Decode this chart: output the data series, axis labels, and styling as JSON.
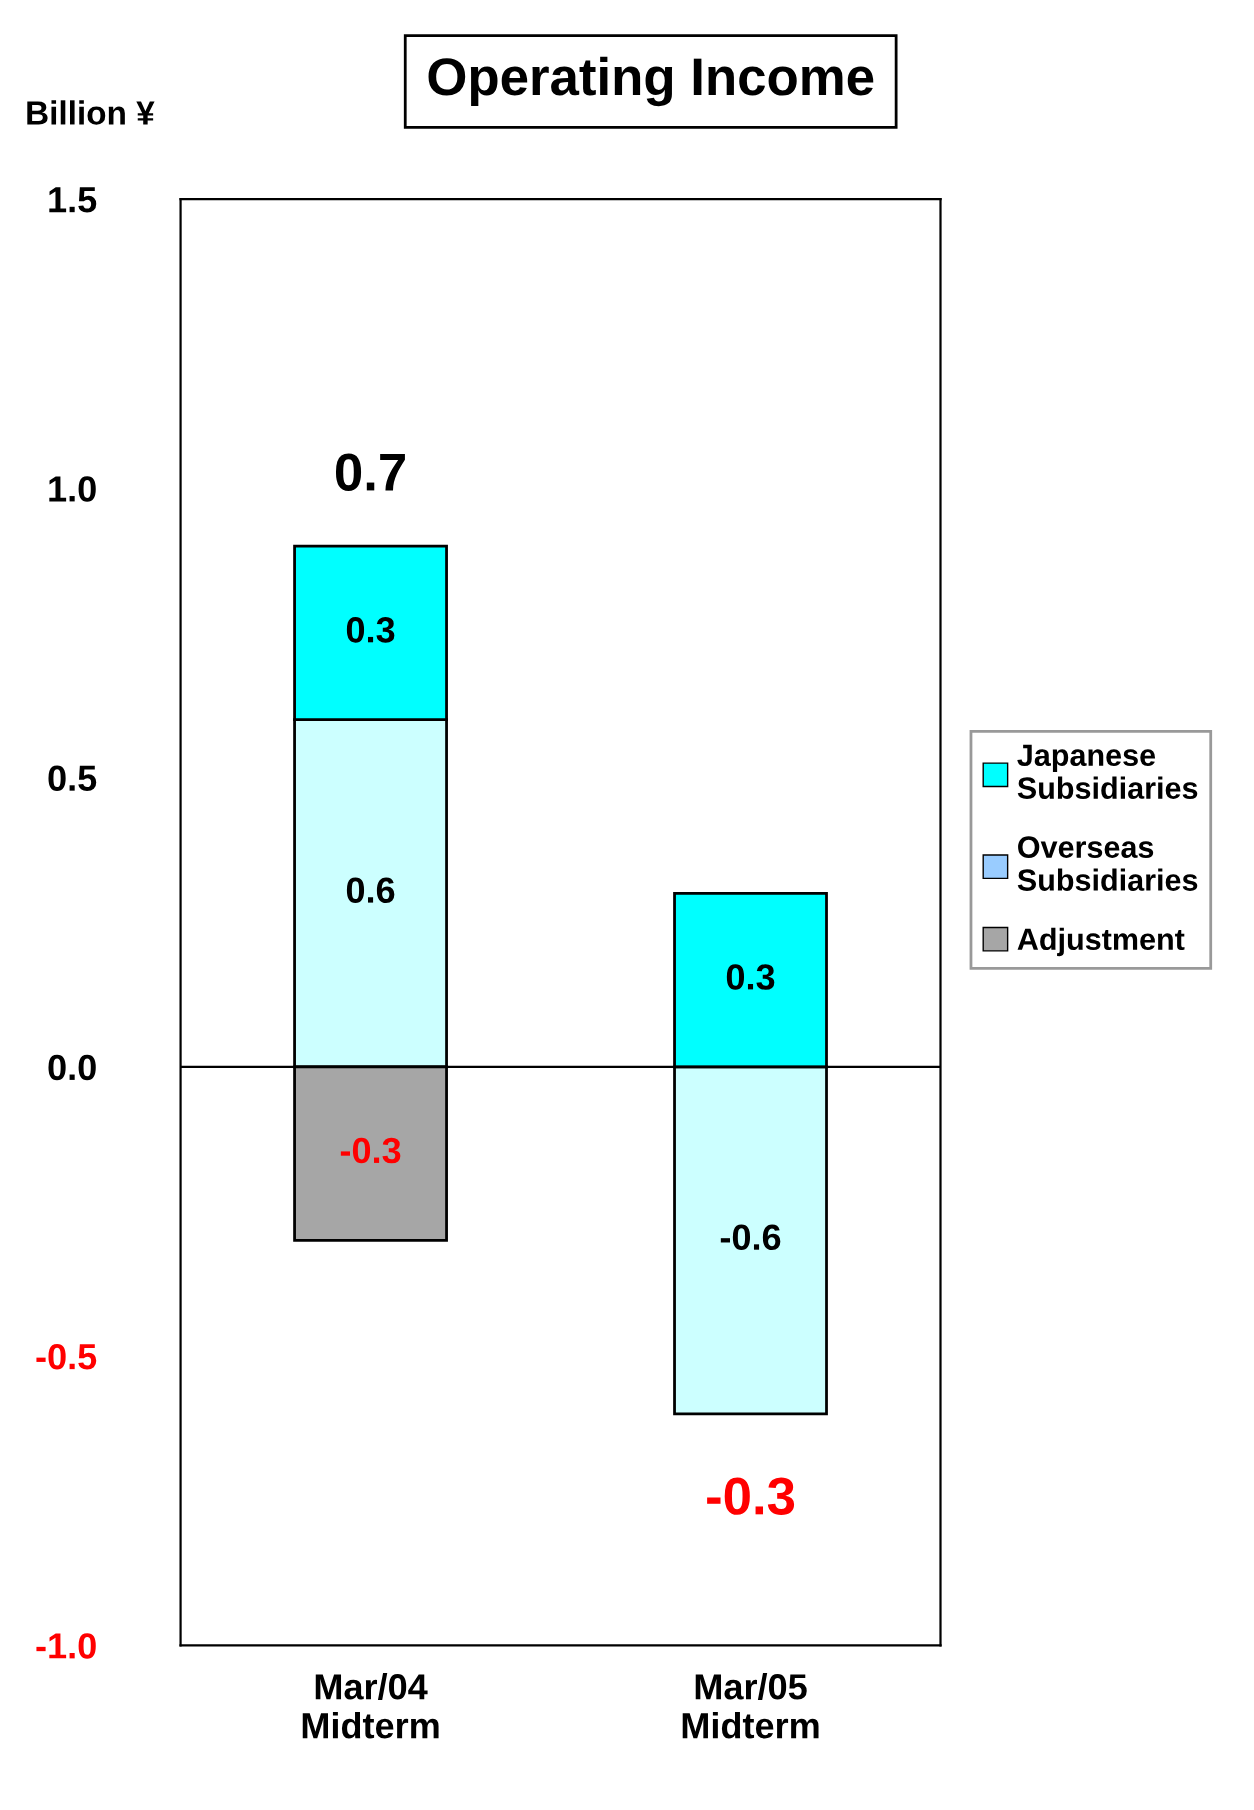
{
  "chart_data": {
    "type": "bar",
    "title": "Operating Income",
    "ylabel": "Billion ¥",
    "categories": [
      "Mar/04\nMidterm",
      "Mar/05\nMidterm"
    ],
    "stacked": true,
    "series": [
      {
        "color": "#ccffff",
        "values": [
          0.6,
          -0.6
        ],
        "value_labels": [
          "0.6",
          "-0.6"
        ]
      },
      {
        "name": "Japanese\nSubsidiaries",
        "color": "#00ffff",
        "values": [
          0.3,
          0.3
        ],
        "value_labels": [
          "0.3",
          "0.3"
        ]
      },
      {
        "name": "Overseas\nSubsidiaries",
        "color": "#99ccff",
        "values": [
          null,
          null
        ]
      },
      {
        "name": "Adjustment",
        "color": "#a6a6a6",
        "values": [
          -0.3,
          null
        ],
        "value_labels": [
          "-0.3",
          null
        ]
      }
    ],
    "totals": [
      "0.7",
      "-0.3"
    ],
    "ylim": [
      -1.0,
      1.5
    ],
    "yticks": [
      {
        "value": -1.0,
        "label": "-1.0"
      },
      {
        "value": -0.5,
        "label": "-0.5"
      },
      {
        "value": 0,
        "label": "0.0"
      },
      {
        "value": 0.5,
        "label": "0.5"
      },
      {
        "value": 1.0,
        "label": "1.0"
      },
      1.5
    ],
    "ref_lines": [
      {
        "axis": "y",
        "value": 0
      }
    ],
    "grid": false,
    "legend": "right"
  }
}
